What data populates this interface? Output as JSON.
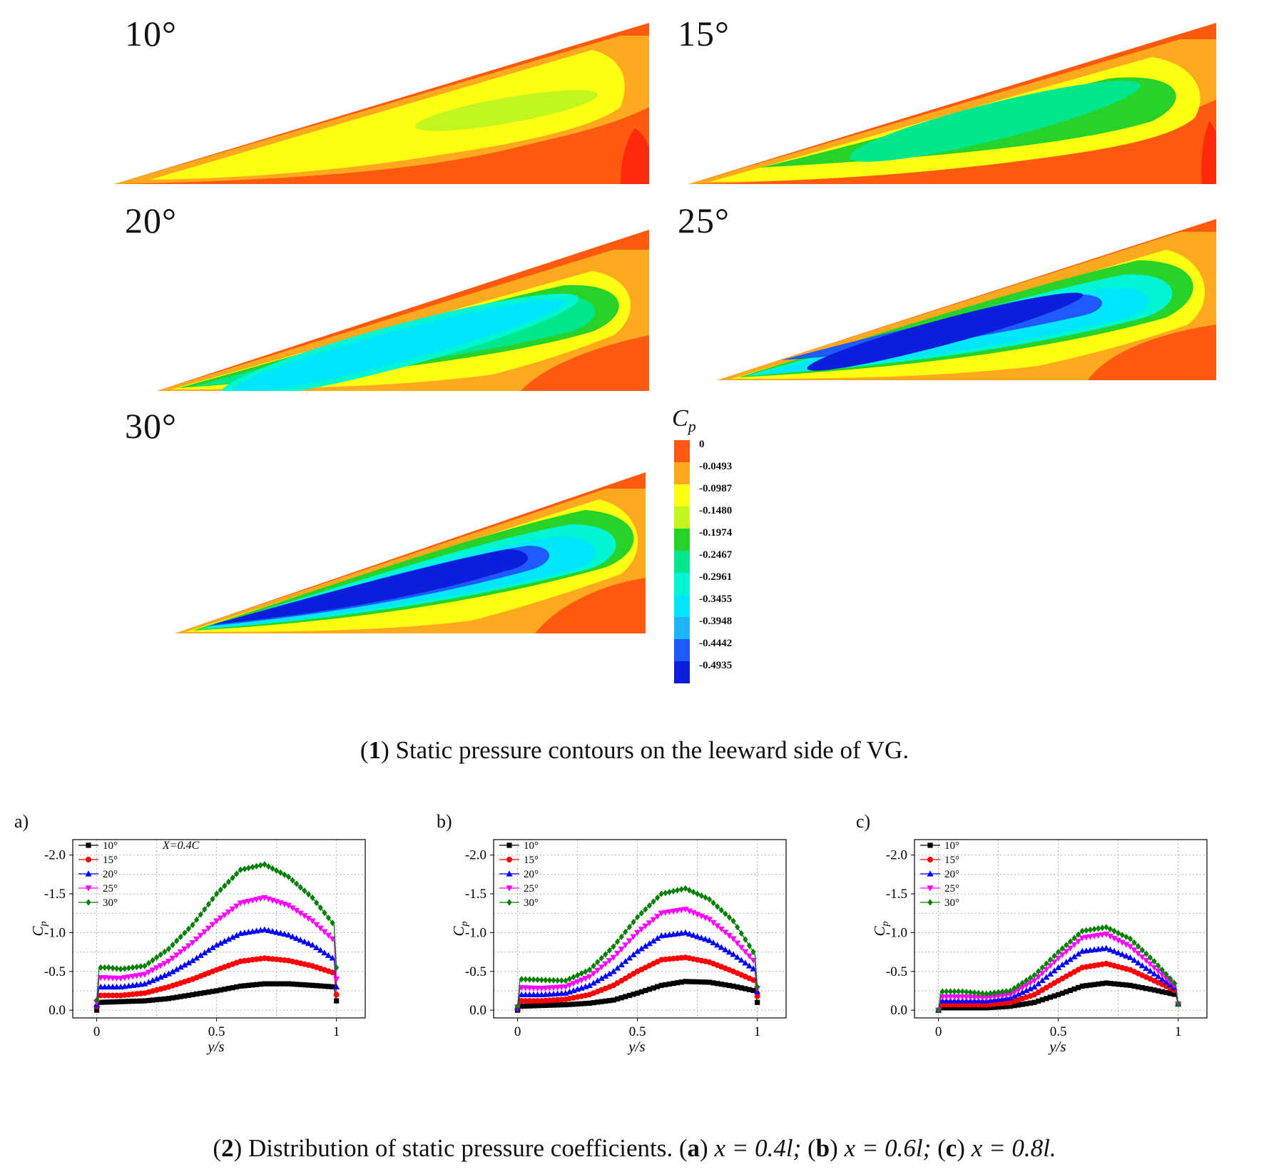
{
  "figure": {
    "caption1": {
      "num": "1",
      "text": "Static pressure contours on the leeward side of VG."
    },
    "caption2": {
      "num": "2",
      "text_prefix": "Distribution of static pressure coefficients.",
      "a": "a",
      "a_text": "x = 0.4l;",
      "b": "b",
      "b_text": "x = 0.6l;",
      "c": "c",
      "c_text": "x = 0.8l."
    }
  },
  "contours": [
    {
      "angle": "10°"
    },
    {
      "angle": "15°"
    },
    {
      "angle": "20°"
    },
    {
      "angle": "25°"
    },
    {
      "angle": "30°"
    }
  ],
  "colorbar": {
    "title": "C",
    "subscript": "p",
    "levels": [
      "0",
      "-0.0493",
      "-0.0987",
      "-0.1480",
      "-0.1974",
      "-0.2467",
      "-0.2961",
      "-0.3455",
      "-0.3948",
      "-0.4442",
      "-0.4935"
    ],
    "colors": [
      "#ff5a0f",
      "#ffaa1e",
      "#ffff14",
      "#c3f51e",
      "#28d228",
      "#00e68c",
      "#00f5d2",
      "#00e6ff",
      "#1eb4ff",
      "#1e5aff",
      "#0a1edc"
    ]
  },
  "chart_data": [
    {
      "type": "line",
      "panel": "a)",
      "annotation": "X=0.4C",
      "xlabel": "y/s",
      "ylabel": "Cp",
      "xlim": [
        -0.1,
        1.12
      ],
      "ylim": [
        0.1,
        -2.2
      ],
      "xticks": [
        "0",
        "0.5",
        "1"
      ],
      "yticks": [
        "-2.0",
        "-1.5",
        "-1.0",
        "-0.5",
        "0.0"
      ],
      "series": [
        {
          "name": "10°",
          "color": "#000000",
          "marker": "square",
          "x": [
            0,
            0.01,
            0.1,
            0.2,
            0.3,
            0.4,
            0.5,
            0.6,
            0.7,
            0.8,
            0.9,
            0.99,
            1.0
          ],
          "y": [
            0.0,
            -0.1,
            -0.11,
            -0.12,
            -0.15,
            -0.2,
            -0.25,
            -0.31,
            -0.34,
            -0.34,
            -0.32,
            -0.3,
            -0.12
          ]
        },
        {
          "name": "15°",
          "color": "#ff0000",
          "marker": "circle",
          "x": [
            0,
            0.01,
            0.1,
            0.2,
            0.3,
            0.4,
            0.5,
            0.6,
            0.7,
            0.8,
            0.9,
            0.99,
            1.0
          ],
          "y": [
            -0.05,
            -0.19,
            -0.19,
            -0.22,
            -0.3,
            -0.4,
            -0.52,
            -0.63,
            -0.67,
            -0.64,
            -0.57,
            -0.48,
            -0.2
          ]
        },
        {
          "name": "20°",
          "color": "#0000ff",
          "marker": "triangle-up",
          "x": [
            0,
            0.01,
            0.1,
            0.2,
            0.3,
            0.4,
            0.5,
            0.6,
            0.7,
            0.8,
            0.9,
            0.99,
            1.0
          ],
          "y": [
            -0.07,
            -0.3,
            -0.3,
            -0.34,
            -0.47,
            -0.64,
            -0.84,
            -0.99,
            -1.04,
            -0.97,
            -0.84,
            -0.66,
            -0.3
          ]
        },
        {
          "name": "25°",
          "color": "#ff00ff",
          "marker": "triangle-down",
          "x": [
            0,
            0.01,
            0.1,
            0.2,
            0.3,
            0.4,
            0.5,
            0.6,
            0.7,
            0.8,
            0.9,
            0.99,
            1.0
          ],
          "y": [
            -0.1,
            -0.42,
            -0.41,
            -0.46,
            -0.63,
            -0.87,
            -1.15,
            -1.38,
            -1.45,
            -1.35,
            -1.15,
            -0.9,
            -0.4
          ]
        },
        {
          "name": "30°",
          "color": "#008000",
          "marker": "diamond",
          "x": [
            0,
            0.01,
            0.05,
            0.1,
            0.2,
            0.3,
            0.4,
            0.5,
            0.6,
            0.7,
            0.8,
            0.9,
            0.99,
            1.0
          ],
          "y": [
            -0.13,
            -0.55,
            -0.55,
            -0.53,
            -0.57,
            -0.79,
            -1.1,
            -1.5,
            -1.81,
            -1.88,
            -1.72,
            -1.45,
            -1.1,
            -0.55
          ]
        }
      ],
      "legend": "top-left"
    },
    {
      "type": "line",
      "panel": "b)",
      "xlabel": "y/s",
      "ylabel": "Cp",
      "xlim": [
        -0.1,
        1.12
      ],
      "ylim": [
        0.1,
        -2.2
      ],
      "xticks": [
        "0",
        "0.5",
        "1"
      ],
      "yticks": [
        "-2.0",
        "-1.5",
        "-1.0",
        "-0.5",
        "0.0"
      ],
      "series": [
        {
          "name": "10°",
          "color": "#000000",
          "marker": "square",
          "x": [
            0,
            0.01,
            0.1,
            0.2,
            0.3,
            0.4,
            0.5,
            0.6,
            0.7,
            0.8,
            0.9,
            0.99,
            1.0
          ],
          "y": [
            0.0,
            -0.05,
            -0.06,
            -0.07,
            -0.09,
            -0.13,
            -0.22,
            -0.32,
            -0.37,
            -0.36,
            -0.31,
            -0.25,
            -0.1
          ]
        },
        {
          "name": "15°",
          "color": "#ff0000",
          "marker": "circle",
          "x": [
            0,
            0.01,
            0.1,
            0.2,
            0.3,
            0.4,
            0.5,
            0.6,
            0.7,
            0.8,
            0.9,
            0.99,
            1.0
          ],
          "y": [
            -0.02,
            -0.12,
            -0.12,
            -0.14,
            -0.2,
            -0.32,
            -0.5,
            -0.65,
            -0.68,
            -0.62,
            -0.5,
            -0.38,
            -0.18
          ]
        },
        {
          "name": "20°",
          "color": "#0000ff",
          "marker": "triangle-up",
          "x": [
            0,
            0.01,
            0.1,
            0.2,
            0.3,
            0.4,
            0.5,
            0.6,
            0.7,
            0.8,
            0.9,
            0.99,
            1.0
          ],
          "y": [
            -0.03,
            -0.2,
            -0.2,
            -0.22,
            -0.32,
            -0.5,
            -0.76,
            -0.96,
            -1.0,
            -0.9,
            -0.72,
            -0.52,
            -0.24
          ]
        },
        {
          "name": "25°",
          "color": "#ff00ff",
          "marker": "triangle-down",
          "x": [
            0,
            0.01,
            0.1,
            0.2,
            0.3,
            0.4,
            0.5,
            0.6,
            0.7,
            0.8,
            0.9,
            0.99,
            1.0
          ],
          "y": [
            -0.04,
            -0.29,
            -0.28,
            -0.3,
            -0.43,
            -0.68,
            -1.0,
            -1.25,
            -1.3,
            -1.17,
            -0.92,
            -0.62,
            -0.28
          ]
        },
        {
          "name": "30°",
          "color": "#008000",
          "marker": "diamond",
          "x": [
            0,
            0.01,
            0.1,
            0.2,
            0.3,
            0.4,
            0.5,
            0.6,
            0.7,
            0.8,
            0.9,
            0.99,
            1.0
          ],
          "y": [
            -0.05,
            -0.4,
            -0.39,
            -0.38,
            -0.52,
            -0.82,
            -1.2,
            -1.5,
            -1.57,
            -1.43,
            -1.15,
            -0.72,
            -0.3
          ]
        }
      ],
      "legend": "top-left"
    },
    {
      "type": "line",
      "panel": "c)",
      "xlabel": "y/s",
      "ylabel": "Cp",
      "xlim": [
        -0.1,
        1.12
      ],
      "ylim": [
        0.1,
        -2.2
      ],
      "xticks": [
        "0",
        "0.5",
        "1"
      ],
      "yticks": [
        "-2.0",
        "-1.5",
        "-1.0",
        "-0.5",
        "0.0"
      ],
      "series": [
        {
          "name": "10°",
          "color": "#000000",
          "marker": "square",
          "x": [
            0,
            0.01,
            0.1,
            0.2,
            0.3,
            0.4,
            0.5,
            0.6,
            0.7,
            0.8,
            0.9,
            0.99,
            1.0
          ],
          "y": [
            0.0,
            -0.03,
            -0.03,
            -0.03,
            -0.05,
            -0.1,
            -0.2,
            -0.31,
            -0.35,
            -0.32,
            -0.26,
            -0.2,
            -0.08
          ]
        },
        {
          "name": "15°",
          "color": "#ff0000",
          "marker": "circle",
          "x": [
            0,
            0.01,
            0.1,
            0.2,
            0.3,
            0.4,
            0.5,
            0.6,
            0.7,
            0.8,
            0.9,
            0.99,
            1.0
          ],
          "y": [
            0.0,
            -0.07,
            -0.07,
            -0.07,
            -0.1,
            -0.2,
            -0.38,
            -0.55,
            -0.6,
            -0.52,
            -0.38,
            -0.25,
            -0.08
          ]
        },
        {
          "name": "20°",
          "color": "#0000ff",
          "marker": "triangle-up",
          "x": [
            0,
            0.01,
            0.1,
            0.2,
            0.3,
            0.4,
            0.5,
            0.6,
            0.7,
            0.8,
            0.9,
            0.99,
            1.0
          ],
          "y": [
            0.0,
            -0.12,
            -0.12,
            -0.12,
            -0.16,
            -0.3,
            -0.55,
            -0.76,
            -0.8,
            -0.68,
            -0.47,
            -0.28,
            -0.08
          ]
        },
        {
          "name": "25°",
          "color": "#ff00ff",
          "marker": "triangle-down",
          "x": [
            0,
            0.01,
            0.1,
            0.2,
            0.3,
            0.4,
            0.5,
            0.6,
            0.7,
            0.8,
            0.9,
            0.99,
            1.0
          ],
          "y": [
            0.0,
            -0.17,
            -0.17,
            -0.16,
            -0.2,
            -0.38,
            -0.67,
            -0.93,
            -0.98,
            -0.82,
            -0.55,
            -0.3,
            -0.08
          ]
        },
        {
          "name": "30°",
          "color": "#008000",
          "marker": "diamond",
          "x": [
            0,
            0.01,
            0.1,
            0.2,
            0.3,
            0.4,
            0.5,
            0.6,
            0.7,
            0.8,
            0.9,
            0.99,
            1.0
          ],
          "y": [
            0.0,
            -0.24,
            -0.24,
            -0.21,
            -0.25,
            -0.45,
            -0.75,
            -1.02,
            -1.07,
            -0.92,
            -0.63,
            -0.33,
            -0.08
          ]
        }
      ],
      "legend": "top-left"
    }
  ]
}
